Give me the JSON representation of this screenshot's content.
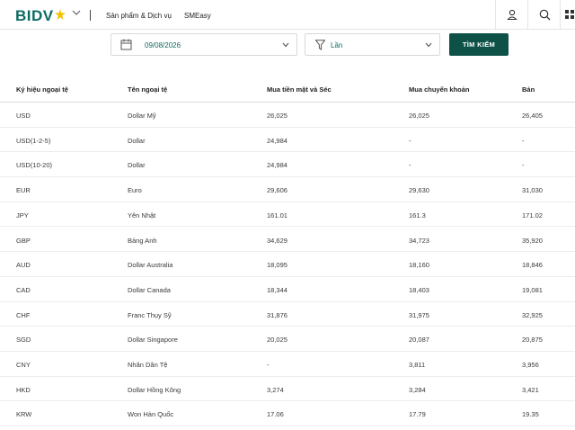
{
  "header": {
    "logo_text": "BIDV",
    "nav": [
      "Sản phẩm & Dịch vụ",
      "SMEasy"
    ],
    "icons": [
      "user-icon",
      "search-icon",
      "grid-icon"
    ]
  },
  "filters": {
    "date_value": "09/08/2026",
    "unit_value": "Lần",
    "search_button": "TÌM KIẾM"
  },
  "table": {
    "headers": [
      "Ký hiệu ngoại tệ",
      "Tên ngoại tệ",
      "Mua tiền mặt và Séc",
      "Mua chuyển khoản",
      "Bán"
    ],
    "rows": [
      [
        "USD",
        "Dollar Mỹ",
        "26,025",
        "26,025",
        "26,405"
      ],
      [
        "USD(1-2-5)",
        "Dollar",
        "24,984",
        "-",
        "-"
      ],
      [
        "USD(10-20)",
        "Dollar",
        "24,984",
        "-",
        "-"
      ],
      [
        "EUR",
        "Euro",
        "29,606",
        "29,630",
        "31,030"
      ],
      [
        "JPY",
        "Yên Nhật",
        "161.01",
        "161.3",
        "171.02"
      ],
      [
        "GBP",
        "Bảng Anh",
        "34,629",
        "34,723",
        "35,920"
      ],
      [
        "AUD",
        "Dollar Australia",
        "18,095",
        "18,160",
        "18,846"
      ],
      [
        "CAD",
        "Dollar Canada",
        "18,344",
        "18,403",
        "19,081"
      ],
      [
        "CHF",
        "Franc Thụy Sỹ",
        "31,876",
        "31,975",
        "32,925"
      ],
      [
        "SGD",
        "Dollar Singapore",
        "20,025",
        "20,087",
        "20,875"
      ],
      [
        "CNY",
        "Nhân Dân Tệ",
        "-",
        "3,811",
        "3,956"
      ],
      [
        "HKD",
        "Dollar Hồng Kông",
        "3,274",
        "3,284",
        "3,421"
      ],
      [
        "KRW",
        "Won Hàn Quốc",
        "17.06",
        "17.79",
        "19.35"
      ]
    ]
  },
  "colors": {
    "brand": "#0e6b64",
    "button": "#0e5147",
    "accent_star": "#f2c200"
  }
}
